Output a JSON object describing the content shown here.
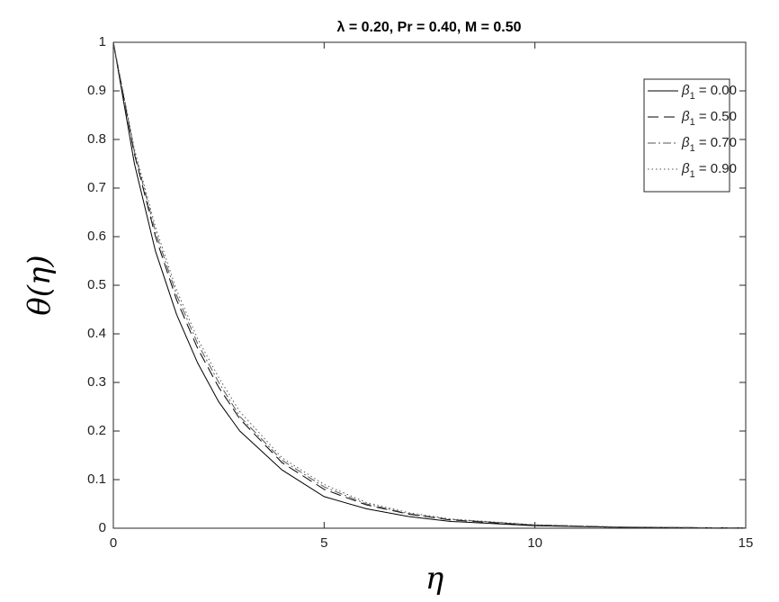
{
  "chart_data": {
    "type": "line",
    "title": "λ = 0.20, Pr = 0.40, M = 0.50",
    "x_label": "η",
    "y_label": "θ(η)",
    "x": [
      0,
      0.5,
      1,
      1.5,
      2,
      2.5,
      3,
      4,
      5,
      6,
      7,
      8,
      10,
      12,
      15
    ],
    "series": [
      {
        "name": "β1 = 0.00",
        "color": "#000000",
        "dash": "none",
        "values": [
          1,
          0.75,
          0.57,
          0.44,
          0.34,
          0.26,
          0.2,
          0.12,
          0.065,
          0.04,
          0.024,
          0.014,
          0.005,
          0.002,
          0.0003
        ]
      },
      {
        "name": "β1 = 0.50",
        "color": "#000000",
        "dash": "12 6",
        "values": [
          1,
          0.77,
          0.6,
          0.47,
          0.37,
          0.29,
          0.225,
          0.135,
          0.08,
          0.048,
          0.029,
          0.017,
          0.006,
          0.002,
          0.0004
        ]
      },
      {
        "name": "β1 = 0.70",
        "color": "#555555",
        "dash": "9 3 2 3",
        "values": [
          1,
          0.775,
          0.61,
          0.48,
          0.38,
          0.3,
          0.23,
          0.14,
          0.085,
          0.05,
          0.03,
          0.018,
          0.007,
          0.0025,
          0.0005
        ]
      },
      {
        "name": "β1 = 0.90",
        "color": "#555555",
        "dash": "1.5 3",
        "values": [
          1,
          0.78,
          0.62,
          0.49,
          0.39,
          0.31,
          0.24,
          0.145,
          0.09,
          0.053,
          0.032,
          0.019,
          0.007,
          0.0025,
          0.0005
        ]
      }
    ],
    "xlim": [
      0,
      15
    ],
    "ylim": [
      0,
      1
    ],
    "xticks": [
      0,
      5,
      10,
      15
    ],
    "yticks": [
      0,
      0.1,
      0.2,
      0.3,
      0.4,
      0.5,
      0.6,
      0.7,
      0.8,
      0.9,
      1
    ],
    "grid": false,
    "legend": "upper right"
  }
}
